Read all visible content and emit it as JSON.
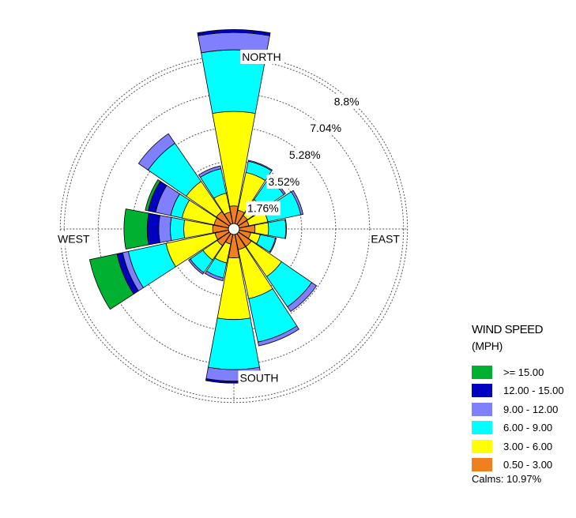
{
  "chart_data": {
    "type": "windrose",
    "directions": [
      "N",
      "NNE",
      "NE",
      "ENE",
      "E",
      "ESE",
      "SE",
      "SSE",
      "S",
      "SSW",
      "SW",
      "WSW",
      "W",
      "WNW",
      "NW",
      "NNW"
    ],
    "bins": [
      "0.50 - 3.00",
      "3.00 - 6.00",
      "6.00 - 9.00",
      "9.00 - 12.00",
      "12.00 - 15.00",
      ">= 15.00"
    ],
    "frequencies_percent": [
      [
        1.2,
        4.9,
        3.2,
        0.9,
        0.15,
        0.0
      ],
      [
        1.0,
        2.0,
        0.6,
        0.05,
        0.0,
        0.0
      ],
      [
        0.85,
        1.0,
        1.3,
        0.1,
        0.0,
        0.0
      ],
      [
        0.8,
        1.0,
        1.75,
        0.12,
        0.0,
        0.0
      ],
      [
        1.1,
        0.7,
        0.9,
        0.03,
        0.0,
        0.0
      ],
      [
        0.9,
        0.5,
        0.8,
        0.05,
        0.0,
        0.0
      ],
      [
        1.1,
        1.9,
        1.9,
        0.3,
        0.0,
        0.0
      ],
      [
        1.1,
        2.6,
        2.3,
        0.2,
        0.0,
        0.0
      ],
      [
        1.5,
        3.2,
        2.6,
        0.6,
        0.1,
        0.0
      ],
      [
        0.8,
        1.0,
        0.8,
        0.15,
        0.0,
        0.0
      ],
      [
        1.05,
        0.9,
        0.8,
        0.1,
        0.0,
        0.0
      ],
      [
        1.0,
        2.6,
        2.0,
        0.3,
        0.3,
        1.45
      ],
      [
        1.1,
        1.5,
        0.7,
        0.6,
        0.6,
        1.2
      ],
      [
        1.05,
        1.7,
        0.6,
        0.8,
        0.4,
        0.15
      ],
      [
        1.1,
        1.9,
        2.4,
        0.6,
        0.0,
        0.0
      ],
      [
        0.9,
        1.0,
        1.3,
        0.15,
        0.0,
        0.0
      ]
    ],
    "bin_colors": [
      "#f07f20",
      "#ffff00",
      "#00ffff",
      "#8080ff",
      "#0000c0",
      "#00b030"
    ],
    "rings_percent": [
      1.76,
      3.52,
      5.28,
      7.04,
      8.8
    ],
    "ring_labels": [
      "1.76%",
      "3.52%",
      "5.28%",
      "7.04%",
      "8.8%"
    ],
    "compass_labels": {
      "north": "NORTH",
      "south": "SOUTH",
      "east": "EAST",
      "west": "WEST"
    },
    "legend_title": "WIND SPEED",
    "legend_units": "(MPH)",
    "legend_items": [
      {
        "label": ">= 15.00",
        "color": "#00b030"
      },
      {
        "label": "12.00 - 15.00",
        "color": "#0000c0"
      },
      {
        "label": "9.00 - 12.00",
        "color": "#8080ff"
      },
      {
        "label": "6.00 - 9.00",
        "color": "#00ffff"
      },
      {
        "label": "3.00 - 6.00",
        "color": "#ffff00"
      },
      {
        "label": "0.50 - 3.00",
        "color": "#f07f20"
      }
    ],
    "calms": "Calms: 10.97%",
    "grid": true,
    "legend_position": "bottom-right"
  }
}
